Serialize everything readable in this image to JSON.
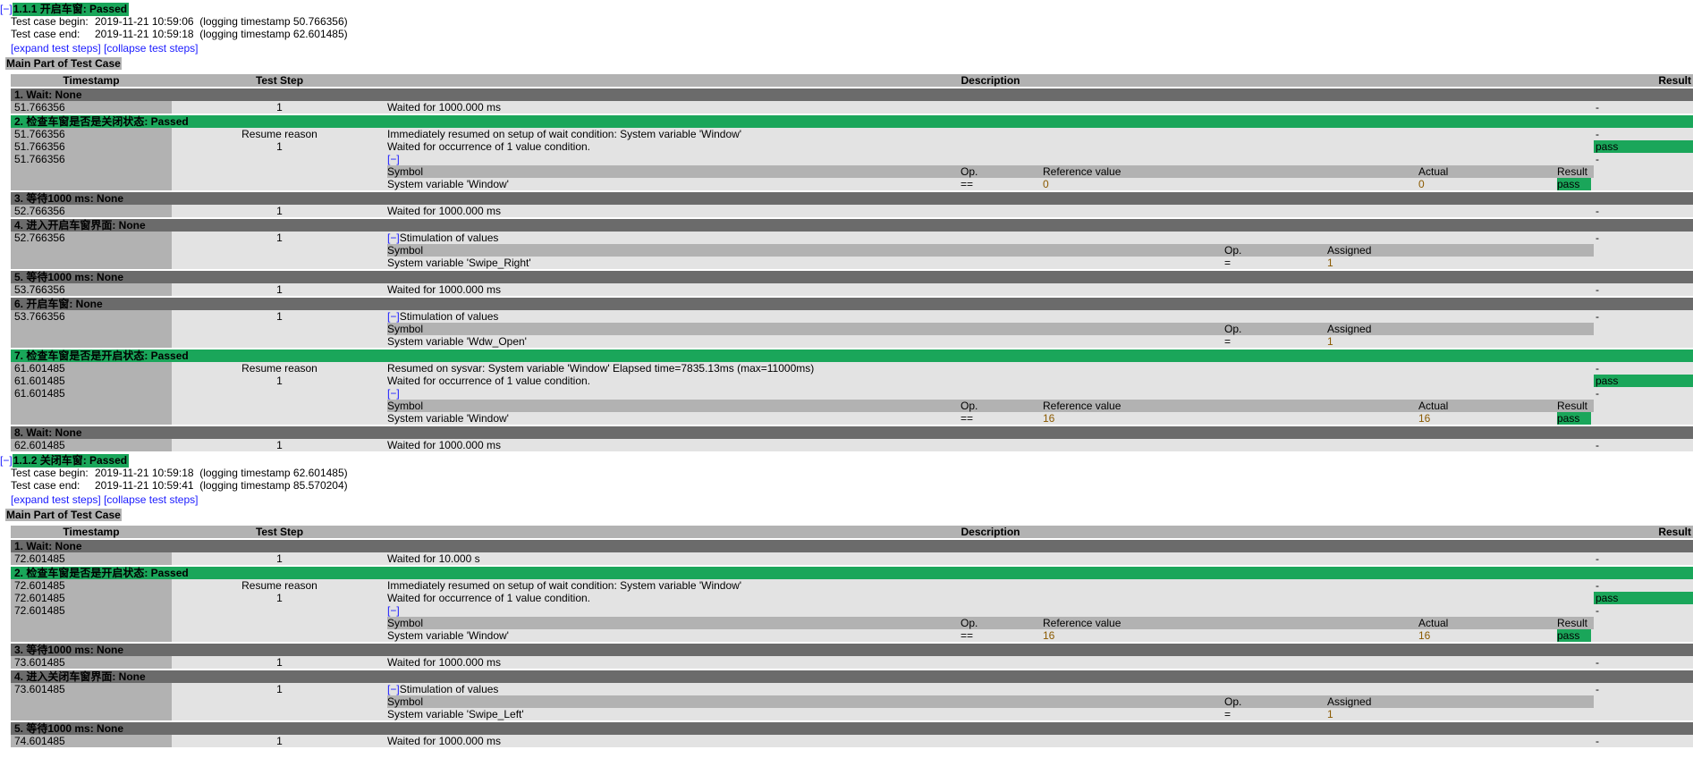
{
  "colors": {
    "passed": "#1aa65a",
    "section": "#6b6b6b",
    "header": "#b2b2b2",
    "row": "#e3e3e3",
    "link": "#1a1aff"
  },
  "testcases": [
    {
      "toggle": "[−]",
      "title": "1.1.1 开启车窗: Passed",
      "begin_label": "Test case begin:",
      "begin_value": "2019-11-21 10:59:06  (logging timestamp 50.766356)",
      "end_label": "Test case end:",
      "end_value": "2019-11-21 10:59:18  (logging timestamp 62.601485)",
      "expand": "[expand test steps]",
      "collapse": "[collapse test steps]",
      "main_part": "Main Part of Test Case",
      "columns": [
        "Timestamp",
        "Test Step",
        "Description",
        "Result"
      ],
      "steps": [
        {
          "title": "1. Wait: None",
          "status": "none",
          "lines": [
            {
              "ts": "51.766356",
              "step": "1",
              "desc": "Waited for 1000.000 ms",
              "result": "-"
            }
          ]
        },
        {
          "title": "2. 检查车窗是否是关闭状态: Passed",
          "status": "passed",
          "lines": [
            {
              "ts": "51.766356",
              "step": "Resume reason",
              "desc": "Immediately resumed on setup of wait condition: System variable 'Window'",
              "result": "-"
            },
            {
              "ts": "51.766356",
              "step": "1",
              "desc": "Waited for occurrence of 1 value condition.",
              "result": "pass"
            },
            {
              "ts": "51.766356",
              "step": "",
              "toggle": "[−]",
              "desc": "",
              "result": "-"
            }
          ],
          "table": {
            "kind": "check",
            "headers": [
              "Symbol",
              "Op.",
              "Reference value",
              "Actual",
              "Result"
            ],
            "rows": [
              [
                "System variable 'Window'",
                "==",
                "0",
                "0",
                "pass"
              ]
            ]
          }
        },
        {
          "title": "3. 等待1000 ms: None",
          "status": "none",
          "lines": [
            {
              "ts": "52.766356",
              "step": "1",
              "desc": "Waited for 1000.000 ms",
              "result": "-"
            }
          ]
        },
        {
          "title": "4. 进入开启车窗界面: None",
          "status": "none",
          "lines": [
            {
              "ts": "52.766356",
              "step": "1",
              "toggle": "[−]",
              "desc": "Stimulation of values",
              "result": "-"
            }
          ],
          "table": {
            "kind": "stim",
            "headers": [
              "Symbol",
              "Op.",
              "Assigned"
            ],
            "rows": [
              [
                "System variable 'Swipe_Right'",
                "=",
                "1"
              ]
            ]
          }
        },
        {
          "title": "5. 等待1000 ms: None",
          "status": "none",
          "lines": [
            {
              "ts": "53.766356",
              "step": "1",
              "desc": "Waited for 1000.000 ms",
              "result": "-"
            }
          ]
        },
        {
          "title": "6. 开启车窗: None",
          "status": "none",
          "lines": [
            {
              "ts": "53.766356",
              "step": "1",
              "toggle": "[−]",
              "desc": "Stimulation of values",
              "result": "-"
            }
          ],
          "table": {
            "kind": "stim",
            "headers": [
              "Symbol",
              "Op.",
              "Assigned"
            ],
            "rows": [
              [
                "System variable 'Wdw_Open'",
                "=",
                "1"
              ]
            ]
          }
        },
        {
          "title": "7. 检查车窗是否是开启状态: Passed",
          "status": "passed",
          "lines": [
            {
              "ts": "61.601485",
              "step": "Resume reason",
              "desc": "Resumed on sysvar: System variable 'Window' Elapsed time=7835.13ms (max=11000ms)",
              "result": "-"
            },
            {
              "ts": "61.601485",
              "step": "1",
              "desc": "Waited for occurrence of 1 value condition.",
              "result": "pass"
            },
            {
              "ts": "61.601485",
              "step": "",
              "toggle": "[−]",
              "desc": "",
              "result": "-"
            }
          ],
          "table": {
            "kind": "check",
            "headers": [
              "Symbol",
              "Op.",
              "Reference value",
              "Actual",
              "Result"
            ],
            "rows": [
              [
                "System variable 'Window'",
                "==",
                "16",
                "16",
                "pass"
              ]
            ]
          }
        },
        {
          "title": "8. Wait: None",
          "status": "none",
          "lines": [
            {
              "ts": "62.601485",
              "step": "1",
              "desc": "Waited for 1000.000 ms",
              "result": "-"
            }
          ]
        }
      ]
    },
    {
      "toggle": "[−]",
      "title": "1.1.2 关闭车窗: Passed",
      "begin_label": "Test case begin:",
      "begin_value": "2019-11-21 10:59:18  (logging timestamp 62.601485)",
      "end_label": "Test case end:",
      "end_value": "2019-11-21 10:59:41  (logging timestamp 85.570204)",
      "expand": "[expand test steps]",
      "collapse": "[collapse test steps]",
      "main_part": "Main Part of Test Case",
      "columns": [
        "Timestamp",
        "Test Step",
        "Description",
        "Result"
      ],
      "steps": [
        {
          "title": "1. Wait: None",
          "status": "none",
          "lines": [
            {
              "ts": "72.601485",
              "step": "1",
              "desc": "Waited for 10.000 s",
              "result": "-"
            }
          ]
        },
        {
          "title": "2. 检查车窗是否是开启状态: Passed",
          "status": "passed",
          "lines": [
            {
              "ts": "72.601485",
              "step": "Resume reason",
              "desc": "Immediately resumed on setup of wait condition: System variable 'Window'",
              "result": "-"
            },
            {
              "ts": "72.601485",
              "step": "1",
              "desc": "Waited for occurrence of 1 value condition.",
              "result": "pass"
            },
            {
              "ts": "72.601485",
              "step": "",
              "toggle": "[−]",
              "desc": "",
              "result": "-"
            }
          ],
          "table": {
            "kind": "check",
            "headers": [
              "Symbol",
              "Op.",
              "Reference value",
              "Actual",
              "Result"
            ],
            "rows": [
              [
                "System variable 'Window'",
                "==",
                "16",
                "16",
                "pass"
              ]
            ]
          }
        },
        {
          "title": "3. 等待1000 ms: None",
          "status": "none",
          "lines": [
            {
              "ts": "73.601485",
              "step": "1",
              "desc": "Waited for 1000.000 ms",
              "result": "-"
            }
          ]
        },
        {
          "title": "4. 进入关闭车窗界面: None",
          "status": "none",
          "lines": [
            {
              "ts": "73.601485",
              "step": "1",
              "toggle": "[−]",
              "desc": "Stimulation of values",
              "result": "-"
            }
          ],
          "table": {
            "kind": "stim",
            "headers": [
              "Symbol",
              "Op.",
              "Assigned"
            ],
            "rows": [
              [
                "System variable 'Swipe_Left'",
                "=",
                "1"
              ]
            ]
          }
        },
        {
          "title": "5. 等待1000 ms: None",
          "status": "none",
          "lines": [
            {
              "ts": "74.601485",
              "step": "1",
              "desc": "Waited for 1000.000 ms",
              "result": "-"
            }
          ]
        }
      ]
    }
  ]
}
